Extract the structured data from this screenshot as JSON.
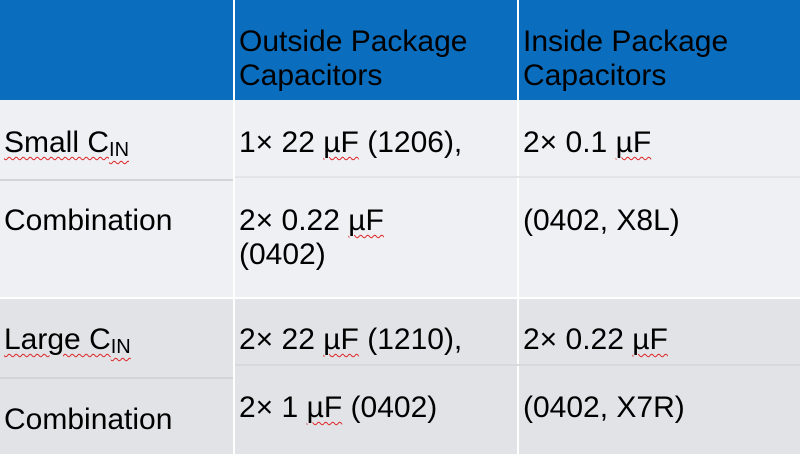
{
  "header": {
    "col1": "",
    "col2": "Outside Package Capacitors",
    "col3": "Inside Package Capacitors"
  },
  "rows": [
    {
      "label_main": "Small C",
      "label_sub": "IN",
      "label_line2": "Combination",
      "outside_line1": "1× 22 ",
      "outside_unit1": "µF",
      "outside_rest1": " (1206),",
      "outside_line2": "2× 0.22 ",
      "outside_unit2": "µF",
      "outside_rest2": "(0402)",
      "inside_line1": "2× 0.1 ",
      "inside_unit1": "µF",
      "inside_line2": "(0402, X8L)"
    },
    {
      "label_main": "Large C",
      "label_sub": "IN",
      "label_line2": "Combination",
      "outside_line1": "2× 22 ",
      "outside_unit1": "µF",
      "outside_rest1": " (1210),",
      "outside_line2": "2× 1 ",
      "outside_unit2": "µF",
      "outside_rest2": " (0402)",
      "inside_line1": "2× 0.22 ",
      "inside_unit1": "µF",
      "inside_line2": "(0402, X7R)"
    }
  ],
  "colors": {
    "header": "#0b6dbd",
    "row_group_1": "#eff0f4",
    "row_group_2": "#e2e3e7"
  }
}
